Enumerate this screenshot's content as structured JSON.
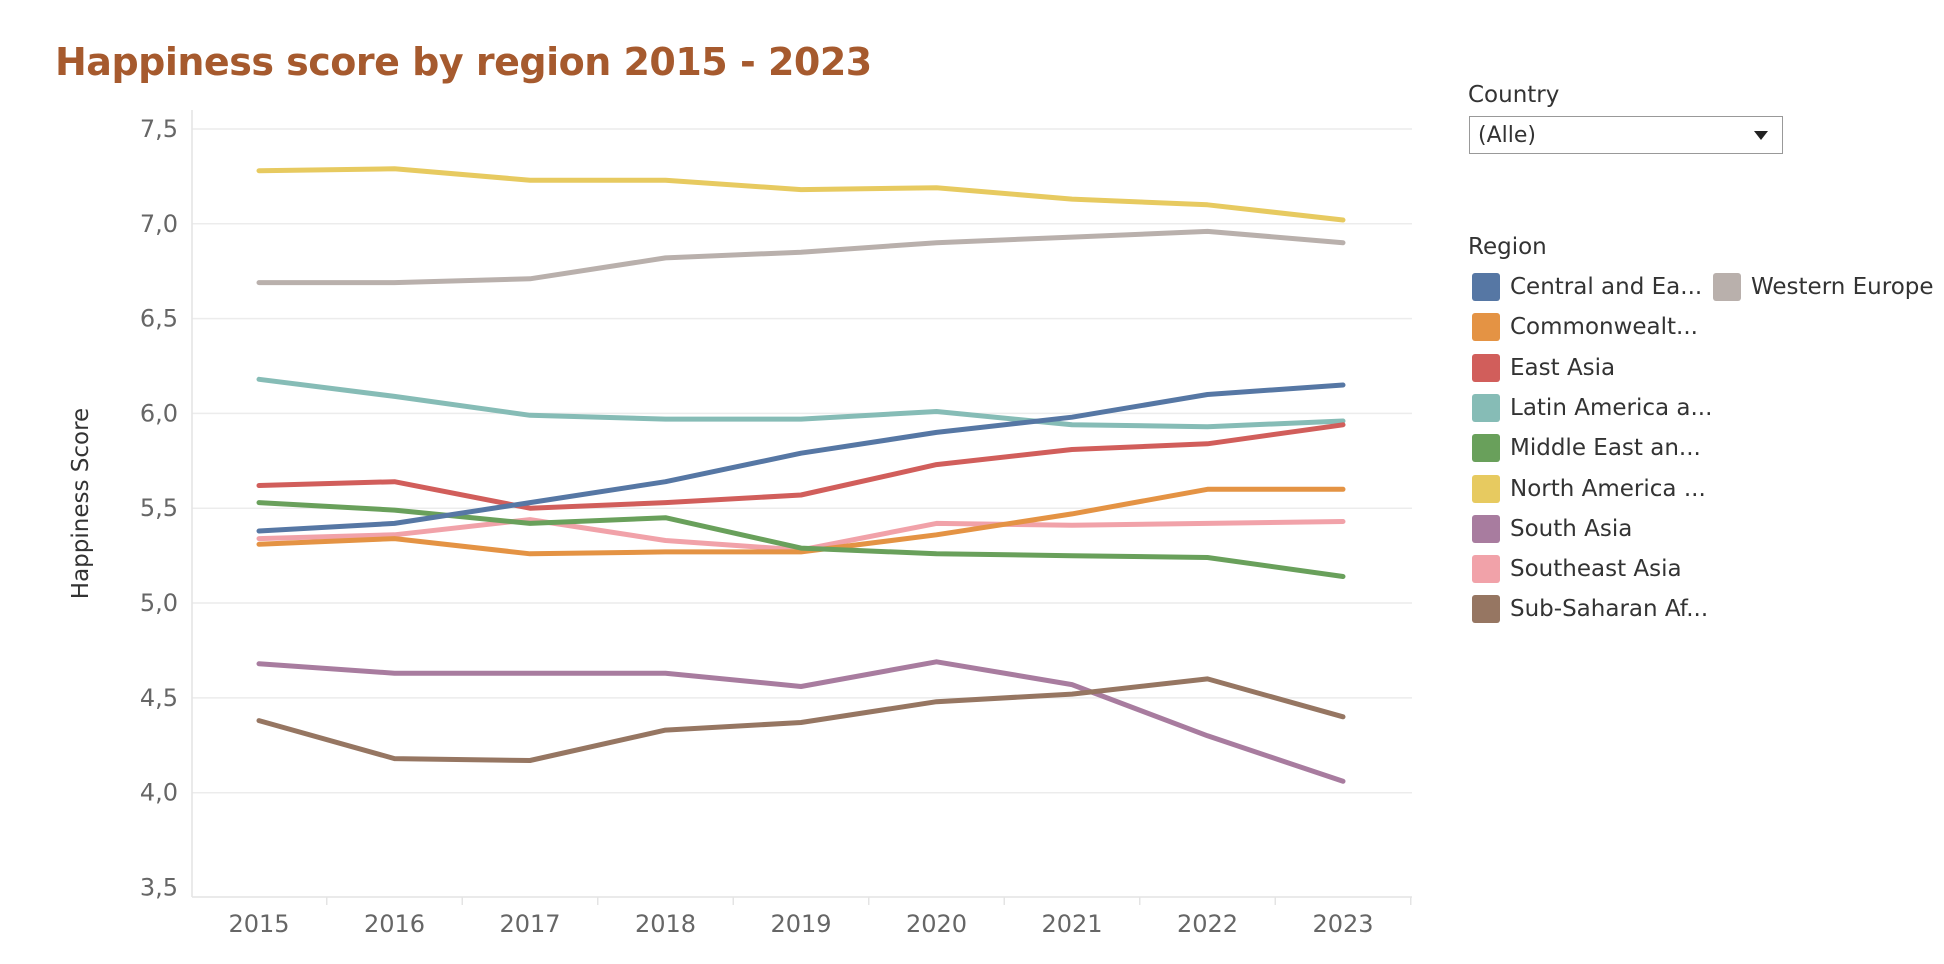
{
  "title": "Happiness score by region 2015 - 2023",
  "filter": {
    "label": "Country",
    "value": "(Alle)",
    "icon": "chevron-down-icon"
  },
  "legend": {
    "title": "Region",
    "items": [
      {
        "label": "Central and Ea...",
        "color": "#5677a4"
      },
      {
        "label": "Western Europe",
        "color": "#b9b0ac"
      },
      {
        "label": "Commonwealt...",
        "color": "#e49344"
      },
      {
        "label": "East Asia",
        "color": "#d15e5b"
      },
      {
        "label": "Latin America a...",
        "color": "#86bcb6"
      },
      {
        "label": "Middle East an...",
        "color": "#69a05b"
      },
      {
        "label": "North America ...",
        "color": "#e7ca60"
      },
      {
        "label": "South Asia",
        "color": "#a87c9f"
      },
      {
        "label": "Southeast Asia",
        "color": "#f1a2a9"
      },
      {
        "label": "Sub-Saharan Af...",
        "color": "#967662"
      }
    ]
  },
  "chart_data": {
    "type": "line",
    "ylabel": "Happiness Score",
    "xlabel": "",
    "x": [
      "2015",
      "2016",
      "2017",
      "2018",
      "2019",
      "2020",
      "2021",
      "2022",
      "2023"
    ],
    "y_ticks": [
      "3,5",
      "4,0",
      "4,5",
      "5,0",
      "5,5",
      "6,0",
      "6,5",
      "7,0",
      "7,5"
    ],
    "ylim": [
      3.45,
      7.6
    ],
    "grid": true,
    "legend_position": "right",
    "series": [
      {
        "name": "Western Europe",
        "color": "#b9b0ac",
        "values": [
          6.69,
          6.69,
          6.71,
          6.82,
          6.85,
          6.9,
          6.93,
          6.96,
          6.9
        ]
      },
      {
        "name": "North America ...",
        "color": "#e7ca60",
        "values": [
          7.28,
          7.29,
          7.23,
          7.23,
          7.18,
          7.19,
          7.13,
          7.1,
          7.02
        ]
      },
      {
        "name": "Latin America a...",
        "color": "#86bcb6",
        "values": [
          6.18,
          6.09,
          5.99,
          5.97,
          5.97,
          6.01,
          5.94,
          5.93,
          5.96
        ]
      },
      {
        "name": "East Asia",
        "color": "#d15e5b",
        "values": [
          5.62,
          5.64,
          5.5,
          5.53,
          5.57,
          5.73,
          5.81,
          5.84,
          5.94
        ]
      },
      {
        "name": "Southeast Asia",
        "color": "#f1a2a9",
        "values": [
          5.34,
          5.36,
          5.44,
          5.33,
          5.28,
          5.42,
          5.41,
          5.42,
          5.43
        ]
      },
      {
        "name": "Commonwealt...",
        "color": "#e49344",
        "values": [
          5.31,
          5.34,
          5.26,
          5.27,
          5.27,
          5.36,
          5.47,
          5.6,
          5.6
        ]
      },
      {
        "name": "Middle East an...",
        "color": "#69a05b",
        "values": [
          5.53,
          5.49,
          5.42,
          5.45,
          5.29,
          5.26,
          5.25,
          5.24,
          5.14
        ]
      },
      {
        "name": "Central and Ea...",
        "color": "#5677a4",
        "values": [
          5.38,
          5.42,
          5.53,
          5.64,
          5.79,
          5.9,
          5.98,
          6.1,
          6.15
        ]
      },
      {
        "name": "South Asia",
        "color": "#a87c9f",
        "values": [
          4.68,
          4.63,
          4.63,
          4.63,
          4.56,
          4.69,
          4.57,
          4.3,
          4.06
        ]
      },
      {
        "name": "Sub-Saharan Af...",
        "color": "#967662",
        "values": [
          4.38,
          4.18,
          4.17,
          4.33,
          4.37,
          4.48,
          4.52,
          4.6,
          4.4
        ]
      }
    ]
  }
}
